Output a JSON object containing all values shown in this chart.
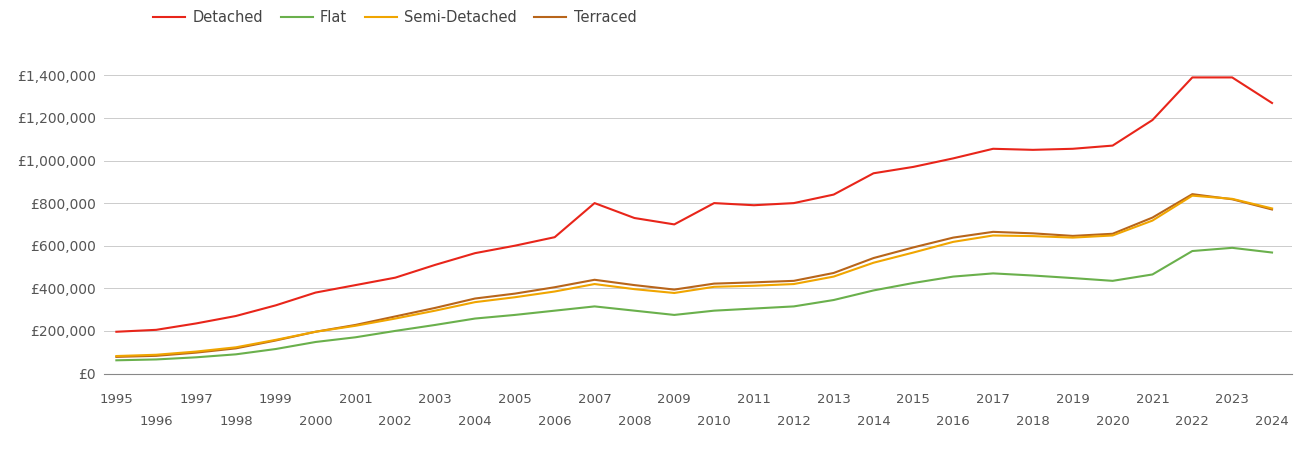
{
  "years": [
    1995,
    1996,
    1997,
    1998,
    1999,
    2000,
    2001,
    2002,
    2003,
    2004,
    2005,
    2006,
    2007,
    2008,
    2009,
    2010,
    2011,
    2012,
    2013,
    2014,
    2015,
    2016,
    2017,
    2018,
    2019,
    2020,
    2021,
    2022,
    2023,
    2024
  ],
  "detached": [
    196000,
    205000,
    235000,
    270000,
    320000,
    380000,
    415000,
    450000,
    510000,
    565000,
    600000,
    640000,
    800000,
    730000,
    700000,
    800000,
    790000,
    800000,
    840000,
    940000,
    970000,
    1010000,
    1055000,
    1050000,
    1055000,
    1070000,
    1190000,
    1390000,
    1390000,
    1270000
  ],
  "flat": [
    62000,
    66000,
    76000,
    90000,
    115000,
    148000,
    170000,
    200000,
    228000,
    258000,
    275000,
    295000,
    315000,
    295000,
    275000,
    295000,
    305000,
    315000,
    345000,
    390000,
    425000,
    455000,
    470000,
    460000,
    448000,
    435000,
    465000,
    575000,
    590000,
    568000
  ],
  "semi_detached": [
    82000,
    88000,
    103000,
    123000,
    158000,
    196000,
    224000,
    258000,
    295000,
    335000,
    358000,
    385000,
    420000,
    396000,
    378000,
    407000,
    412000,
    420000,
    455000,
    520000,
    568000,
    618000,
    648000,
    645000,
    638000,
    648000,
    718000,
    835000,
    820000,
    775000
  ],
  "terraced": [
    78000,
    83000,
    98000,
    118000,
    155000,
    196000,
    228000,
    268000,
    308000,
    352000,
    375000,
    405000,
    440000,
    415000,
    394000,
    422000,
    428000,
    435000,
    472000,
    542000,
    592000,
    638000,
    665000,
    658000,
    646000,
    656000,
    732000,
    842000,
    818000,
    770000
  ],
  "line_colors": {
    "detached": "#e8251a",
    "flat": "#6ab04c",
    "semi_detached": "#f0a500",
    "terraced": "#b8651a"
  },
  "ylim": [
    0,
    1500000
  ],
  "yticks": [
    0,
    200000,
    400000,
    600000,
    800000,
    1000000,
    1200000,
    1400000
  ],
  "ytick_labels": [
    "£0",
    "£200,000",
    "£400,000",
    "£600,000",
    "£800,000",
    "£1,000,000",
    "£1,200,000",
    "£1,400,000"
  ],
  "background_color": "#ffffff",
  "grid_color": "#cccccc",
  "xlim_left": 1994.7,
  "xlim_right": 2024.5
}
